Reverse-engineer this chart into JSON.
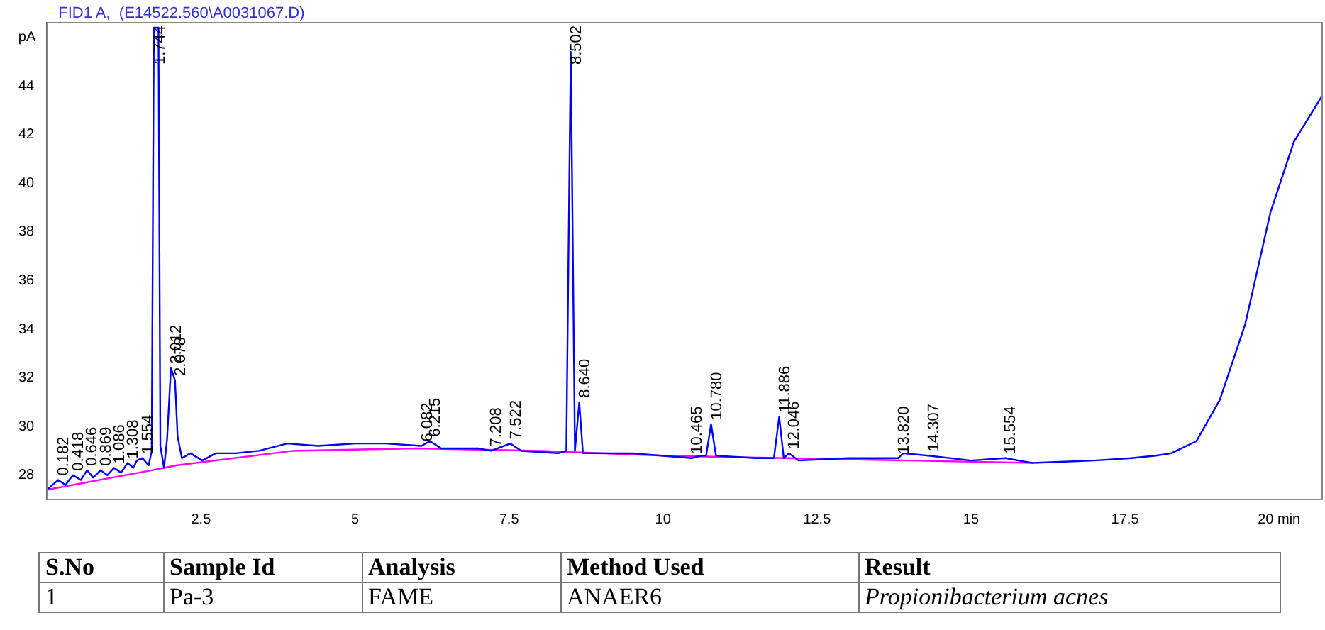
{
  "chart_data": {
    "type": "line",
    "title": "FID1 A,  (E14522.560\\A0031067.D)",
    "ylabel": "pA",
    "xlim": [
      0,
      20.7
    ],
    "xticks": [
      2.5,
      5,
      7.5,
      10,
      12.5,
      15,
      17.5,
      {
        "value": 20,
        "label": "20 min"
      }
    ],
    "ylim": [
      27,
      46.6
    ],
    "yticks": [
      28,
      30,
      32,
      34,
      36,
      38,
      40,
      42,
      44
    ],
    "grid": false,
    "legend": false,
    "marker": "none",
    "line_style": "solid",
    "series": [
      {
        "color": "#ff00ff",
        "x": [
          0,
          1.7,
          2.1,
          4,
          6,
          8,
          10,
          12,
          14,
          16
        ],
        "values": [
          27.4,
          28.2,
          28.4,
          29.0,
          29.1,
          29.0,
          28.8,
          28.7,
          28.6,
          28.5
        ]
      },
      {
        "color": "#0000ff",
        "x": [
          0,
          0.18,
          0.3,
          0.42,
          0.55,
          0.65,
          0.75,
          0.87,
          0.98,
          1.09,
          1.2,
          1.31,
          1.4,
          1.46,
          1.55,
          1.65,
          1.7,
          1.735,
          1.81,
          1.84,
          1.9,
          1.95,
          2.012,
          2.078,
          2.12,
          2.19,
          2.33,
          2.52,
          2.74,
          3.06,
          3.44,
          3.9,
          4.4,
          5.0,
          5.5,
          6.08,
          6.215,
          6.4,
          7.0,
          7.208,
          7.522,
          7.7,
          8.3,
          8.43,
          8.502,
          8.57,
          8.64,
          8.7,
          9.5,
          10.465,
          10.62,
          10.7,
          10.78,
          10.86,
          11.5,
          11.8,
          11.886,
          11.96,
          12.046,
          12.2,
          13,
          13.82,
          13.9,
          14.307,
          15,
          15.554,
          16,
          17,
          17.6,
          18.0,
          18.25,
          18.66,
          19.04,
          19.45,
          19.86,
          20.24,
          20.7
        ],
        "values": [
          27.4,
          27.8,
          27.6,
          28.0,
          27.8,
          28.2,
          27.9,
          28.2,
          28.0,
          28.3,
          28.1,
          28.5,
          28.3,
          28.6,
          28.7,
          28.4,
          29.0,
          46.4,
          46.4,
          29.2,
          28.3,
          29.5,
          32.4,
          31.9,
          29.6,
          28.7,
          28.9,
          28.6,
          28.9,
          28.9,
          29.0,
          29.3,
          29.2,
          29.3,
          29.3,
          29.2,
          29.4,
          29.1,
          29.1,
          29.0,
          29.3,
          29.0,
          28.9,
          29.0,
          45.4,
          29.0,
          31.0,
          28.9,
          28.9,
          28.7,
          28.8,
          28.8,
          30.1,
          28.8,
          28.7,
          28.7,
          30.4,
          28.7,
          28.9,
          28.6,
          28.7,
          28.7,
          28.9,
          28.8,
          28.6,
          28.7,
          28.5,
          28.6,
          28.7,
          28.8,
          28.9,
          29.4,
          31.1,
          34.2,
          38.8,
          41.7,
          43.6
        ]
      }
    ],
    "annotations": [
      {
        "text": "0.182",
        "x": 0.182,
        "y": 27.8
      },
      {
        "text": "0.418",
        "x": 0.418,
        "y": 28.0
      },
      {
        "text": "0.646",
        "x": 0.646,
        "y": 28.2
      },
      {
        "text": "0.869",
        "x": 0.869,
        "y": 28.2
      },
      {
        "text": "1.086",
        "x": 1.086,
        "y": 28.3
      },
      {
        "text": "1.308",
        "x": 1.308,
        "y": 28.5
      },
      {
        "text": "1.554",
        "x": 1.554,
        "y": 28.7
      },
      {
        "text": "1.744",
        "x": 1.744,
        "y": 46.4
      },
      {
        "text": "2.012",
        "x": 2.012,
        "y": 32.4
      },
      {
        "text": "2.078",
        "x": 2.078,
        "y": 31.9
      },
      {
        "text": "6.082",
        "x": 6.082,
        "y": 29.2
      },
      {
        "text": "6.215",
        "x": 6.215,
        "y": 29.4
      },
      {
        "text": "7.208",
        "x": 7.208,
        "y": 29.0
      },
      {
        "text": "7.522",
        "x": 7.522,
        "y": 29.3
      },
      {
        "text": "8.502",
        "x": 8.502,
        "y": 45.4
      },
      {
        "text": "8.640",
        "x": 8.64,
        "y": 31.0
      },
      {
        "text": "10.465",
        "x": 10.465,
        "y": 28.7
      },
      {
        "text": "10.780",
        "x": 10.78,
        "y": 30.1
      },
      {
        "text": "11.886",
        "x": 11.886,
        "y": 30.4
      },
      {
        "text": "12.046",
        "x": 12.046,
        "y": 28.9
      },
      {
        "text": "13.820",
        "x": 13.82,
        "y": 28.7
      },
      {
        "text": "14.307",
        "x": 14.307,
        "y": 28.8
      },
      {
        "text": "15.554",
        "x": 15.554,
        "y": 28.7
      },
      "S.No",
      "Sample Id",
      "Analysis",
      "Method Used",
      "Result",
      "1",
      "Pa-3",
      "FAME",
      "ANAER6",
      "Propionibacterium acnes"
    ]
  }
}
